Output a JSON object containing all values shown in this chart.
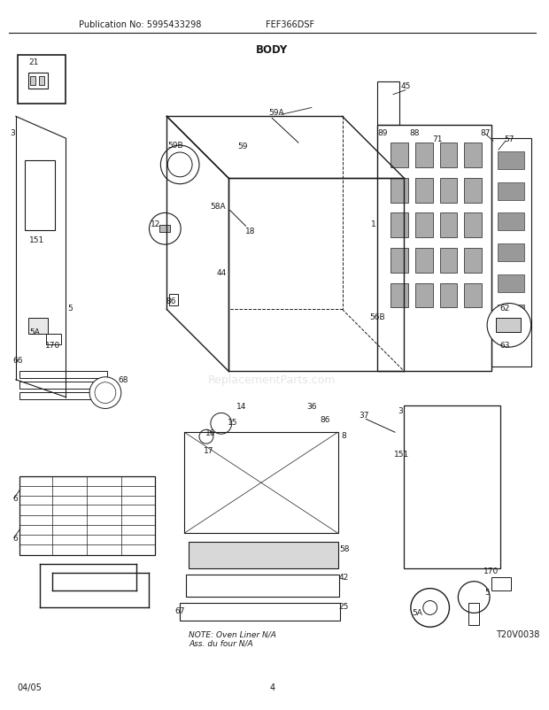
{
  "title": "BODY",
  "pub_no": "Publication No: 5995433298",
  "model": "FEF366DSF",
  "date": "04/05",
  "page": "4",
  "diagram_id": "T20V0038",
  "note": "NOTE: Oven Liner N/A\nAss. du four N/A",
  "watermark": "ReplacementParts.com",
  "bg_color": "#ffffff",
  "line_color": "#1a1a1a",
  "label_color": "#1a1a1a",
  "fig_width": 6.2,
  "fig_height": 8.03
}
